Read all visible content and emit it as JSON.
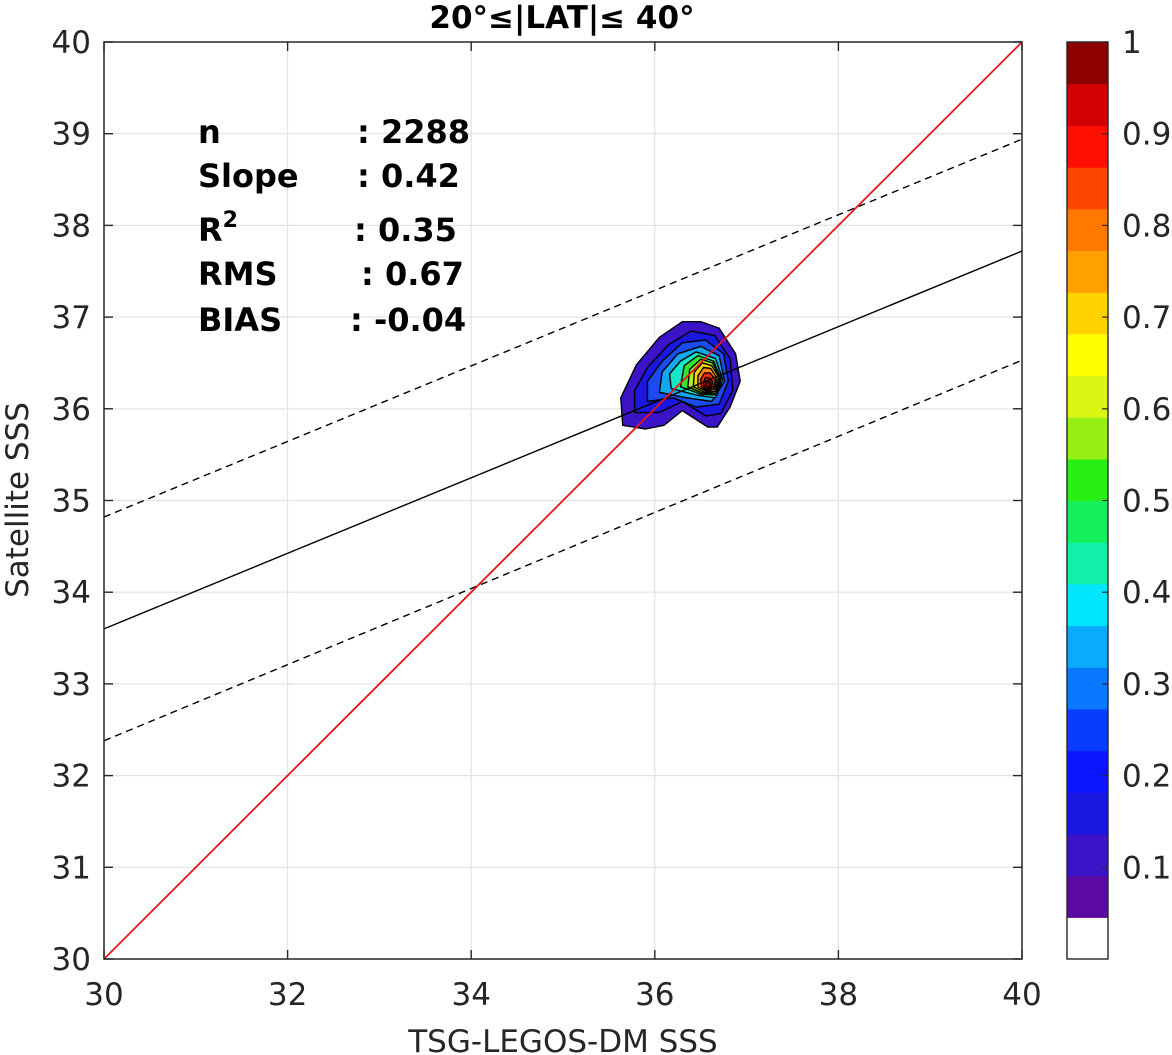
{
  "chart_data": {
    "type": "contour",
    "title": "20°≤|LAT|≤ 40°",
    "xlabel": "TSG-LEGOS-DM SSS",
    "ylabel": "Satellite SSS",
    "xlim": [
      30,
      40
    ],
    "ylim": [
      30,
      40
    ],
    "xticks": [
      "30",
      "32",
      "34",
      "36",
      "38",
      "40"
    ],
    "yticks": [
      "30",
      "31",
      "32",
      "33",
      "34",
      "35",
      "36",
      "37",
      "38",
      "39",
      "40"
    ],
    "grid": true,
    "stats": [
      {
        "label": "n",
        "value": ": 2288"
      },
      {
        "label": "Slope",
        "value": ": 0.42"
      },
      {
        "label": "R",
        "sup": "2",
        "value": ": 0.35"
      },
      {
        "label": "RMS",
        "value": ": 0.67"
      },
      {
        "label": "BIAS",
        "value": ": -0.04"
      }
    ],
    "one_to_one_line": {
      "color": "#e8141c",
      "from": [
        30,
        30
      ],
      "to": [
        40,
        40
      ]
    },
    "fit_line": {
      "from": [
        30,
        33.6
      ],
      "to": [
        40,
        37.72
      ]
    },
    "upper_bound_line": {
      "from": [
        30,
        34.82
      ],
      "to": [
        40,
        38.94
      ]
    },
    "lower_bound_line": {
      "from": [
        30,
        32.38
      ],
      "to": [
        40,
        36.53
      ]
    },
    "density_peak": {
      "x": 36.56,
      "y": 36.25,
      "value": 1.0
    },
    "contour_levels": [
      {
        "level": 0.05,
        "color": "#3c14c8",
        "points": [
          [
            35.65,
            35.82
          ],
          [
            35.9,
            35.78
          ],
          [
            36.1,
            35.82
          ],
          [
            36.3,
            35.98
          ],
          [
            36.58,
            35.8
          ],
          [
            36.68,
            35.8
          ],
          [
            36.82,
            36.02
          ],
          [
            36.93,
            36.3
          ],
          [
            36.88,
            36.6
          ],
          [
            36.7,
            36.88
          ],
          [
            36.5,
            36.95
          ],
          [
            36.3,
            36.95
          ],
          [
            36.05,
            36.78
          ],
          [
            35.8,
            36.48
          ],
          [
            35.63,
            36.12
          ]
        ]
      },
      {
        "level": 0.1,
        "color": "#1a18e0",
        "points": [
          [
            35.78,
            35.96
          ],
          [
            36.05,
            35.96
          ],
          [
            36.3,
            36.08
          ],
          [
            36.56,
            35.92
          ],
          [
            36.72,
            35.95
          ],
          [
            36.85,
            36.2
          ],
          [
            36.82,
            36.55
          ],
          [
            36.65,
            36.8
          ],
          [
            36.4,
            36.85
          ],
          [
            36.15,
            36.7
          ],
          [
            35.92,
            36.45
          ],
          [
            35.78,
            36.2
          ]
        ]
      },
      {
        "level": 0.2,
        "color": "#1a4cf0",
        "points": [
          [
            35.92,
            36.08
          ],
          [
            36.2,
            36.12
          ],
          [
            36.45,
            36.02
          ],
          [
            36.7,
            36.05
          ],
          [
            36.8,
            36.3
          ],
          [
            36.75,
            36.6
          ],
          [
            36.55,
            36.75
          ],
          [
            36.3,
            36.72
          ],
          [
            36.08,
            36.52
          ],
          [
            35.92,
            36.3
          ]
        ]
      },
      {
        "level": 0.3,
        "color": "#12a8f0",
        "points": [
          [
            36.05,
            36.18
          ],
          [
            36.35,
            36.12
          ],
          [
            36.62,
            36.08
          ],
          [
            36.76,
            36.3
          ],
          [
            36.7,
            36.58
          ],
          [
            36.5,
            36.68
          ],
          [
            36.25,
            36.6
          ],
          [
            36.08,
            36.4
          ]
        ]
      },
      {
        "level": 0.4,
        "color": "#12e8c8",
        "points": [
          [
            36.18,
            36.22
          ],
          [
            36.45,
            36.15
          ],
          [
            36.66,
            36.12
          ],
          [
            36.74,
            36.32
          ],
          [
            36.66,
            36.55
          ],
          [
            36.45,
            36.62
          ],
          [
            36.28,
            36.52
          ],
          [
            36.16,
            36.38
          ]
        ]
      },
      {
        "level": 0.5,
        "color": "#2ee830",
        "points": [
          [
            36.28,
            36.24
          ],
          [
            36.5,
            36.16
          ],
          [
            36.68,
            36.15
          ],
          [
            36.72,
            36.33
          ],
          [
            36.64,
            36.52
          ],
          [
            36.47,
            36.58
          ],
          [
            36.32,
            36.47
          ]
        ]
      },
      {
        "level": 0.6,
        "color": "#a8f01e",
        "points": [
          [
            36.36,
            36.24
          ],
          [
            36.52,
            36.17
          ],
          [
            36.67,
            36.17
          ],
          [
            36.71,
            36.34
          ],
          [
            36.63,
            36.5
          ],
          [
            36.5,
            36.54
          ],
          [
            36.38,
            36.43
          ]
        ]
      },
      {
        "level": 0.7,
        "color": "#ffd500",
        "points": [
          [
            36.42,
            36.24
          ],
          [
            36.54,
            36.18
          ],
          [
            36.66,
            36.19
          ],
          [
            36.7,
            36.34
          ],
          [
            36.62,
            36.47
          ],
          [
            36.52,
            36.5
          ],
          [
            36.43,
            36.4
          ]
        ]
      },
      {
        "level": 0.8,
        "color": "#ff8800",
        "points": [
          [
            36.47,
            36.24
          ],
          [
            36.56,
            36.19
          ],
          [
            36.65,
            36.21
          ],
          [
            36.68,
            36.33
          ],
          [
            36.61,
            36.44
          ],
          [
            36.53,
            36.45
          ],
          [
            36.47,
            36.36
          ]
        ]
      },
      {
        "level": 0.9,
        "color": "#ff2a00",
        "points": [
          [
            36.51,
            36.23
          ],
          [
            36.57,
            36.2
          ],
          [
            36.64,
            36.23
          ],
          [
            36.66,
            36.32
          ],
          [
            36.6,
            36.39
          ],
          [
            36.54,
            36.39
          ],
          [
            36.5,
            36.32
          ]
        ]
      },
      {
        "level": 0.95,
        "color": "#c80000",
        "points": [
          [
            36.53,
            36.24
          ],
          [
            36.57,
            36.21
          ],
          [
            36.62,
            36.24
          ],
          [
            36.63,
            36.3
          ],
          [
            36.59,
            36.34
          ],
          [
            36.55,
            36.34
          ],
          [
            36.53,
            36.29
          ]
        ]
      },
      {
        "level": 1.0,
        "color": "#8b0000",
        "points": [
          [
            36.55,
            36.25
          ],
          [
            36.58,
            36.23
          ],
          [
            36.61,
            36.26
          ],
          [
            36.6,
            36.29
          ],
          [
            36.57,
            36.3
          ]
        ]
      }
    ],
    "colorbar": {
      "range": [
        0,
        1
      ],
      "tick_labels": [
        "0.1",
        "0.2",
        "0.3",
        "0.4",
        "0.5",
        "0.6",
        "0.7",
        "0.8",
        "0.9",
        "1"
      ],
      "tick_values": [
        0.1,
        0.2,
        0.3,
        0.4,
        0.5,
        0.6,
        0.7,
        0.8,
        0.9,
        1.0
      ],
      "colors": [
        "#ffffff",
        "#5a0aa0",
        "#3c14c8",
        "#1a18e0",
        "#0a14ff",
        "#0a3cff",
        "#0a78ff",
        "#0aaaff",
        "#00e6ff",
        "#10f0a8",
        "#14f05a",
        "#28f014",
        "#96f014",
        "#dcf514",
        "#ffff00",
        "#ffd200",
        "#ffa000",
        "#ff7800",
        "#ff4600",
        "#ff0f00",
        "#d20000",
        "#8c0000"
      ]
    }
  }
}
